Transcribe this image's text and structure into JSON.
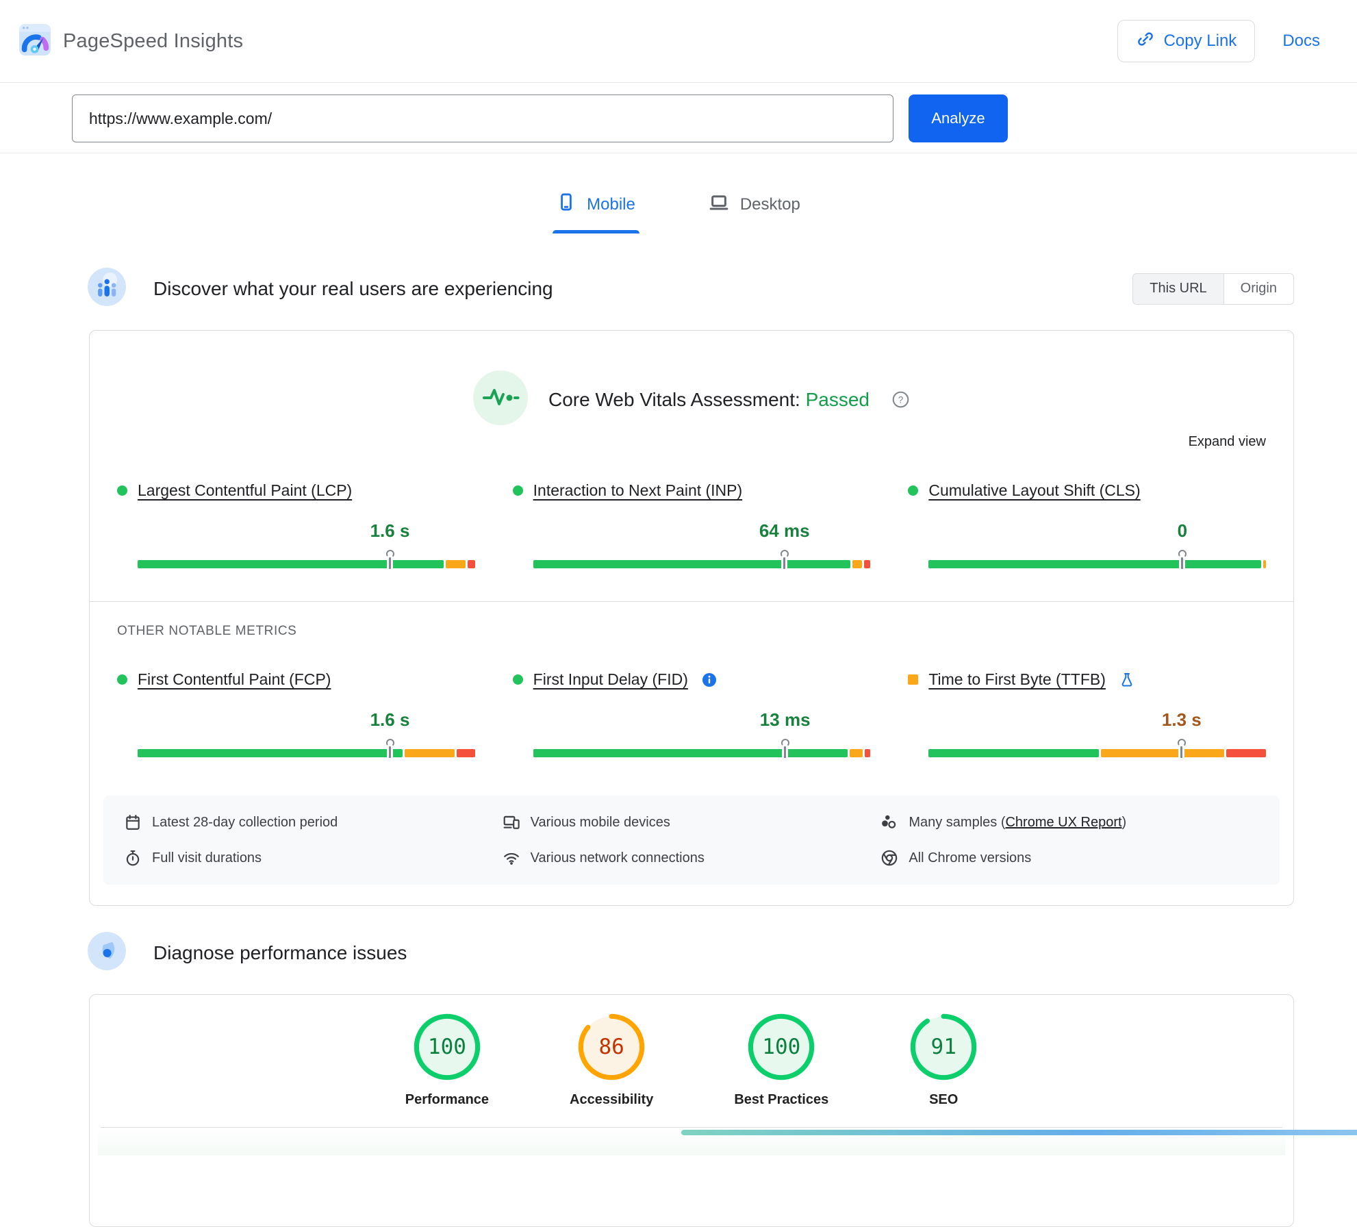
{
  "colors": {
    "accent_blue": "#1a73e8",
    "analyze_blue": "#1164f0",
    "good": "#23c35c",
    "avg_orange": "#faa719",
    "poor_red": "#f4503c",
    "good_text": "#18813d",
    "ni_text": "#a3571c",
    "passed_green": "#129e49",
    "gauge_good": "#0cce6b",
    "gauge_good_bg": "#e7f8ee",
    "gauge_good_text": "#0d8040",
    "gauge_avg": "#ffa400",
    "gauge_avg_bg": "#fdf3e4",
    "gauge_avg_text": "#c33300"
  },
  "header": {
    "app_title": "PageSpeed Insights",
    "copy_link_label": "Copy Link",
    "docs_label": "Docs"
  },
  "url_bar": {
    "url_value": "https://www.example.com/",
    "analyze_label": "Analyze"
  },
  "tabs": {
    "mobile": "Mobile",
    "desktop": "Desktop"
  },
  "field_section": {
    "heading": "Discover what your real users are experiencing",
    "toggle_this_url": "This URL",
    "toggle_origin": "Origin",
    "assessment_label": "Core Web Vitals Assessment:",
    "assessment_result": "Passed",
    "expand_view_label": "Expand view",
    "other_metrics_heading": "OTHER NOTABLE METRICS",
    "core_metrics": [
      {
        "label": "Largest Contentful Paint (LCP)",
        "value": "1.6 s",
        "status": "good",
        "bullet": "circle",
        "marker_pct": 74.8,
        "segments_pct": [
          90.6,
          5.9,
          2.2
        ]
      },
      {
        "label": "Interaction to Next Paint (INP)",
        "value": "64 ms",
        "status": "good",
        "bullet": "circle",
        "marker_pct": 74.5,
        "segments_pct": [
          95.2,
          2.9,
          1.9
        ]
      },
      {
        "label": "Cumulative Layout Shift (CLS)",
        "value": "0",
        "status": "good",
        "bullet": "circle",
        "marker_pct": 75.2,
        "segments_pct": [
          99.2,
          0.8,
          0
        ]
      }
    ],
    "other_metrics": [
      {
        "label": "First Contentful Paint (FCP)",
        "value": "1.6 s",
        "status": "good",
        "bullet": "circle",
        "marker_pct": 74.8,
        "segments_pct": [
          79.5,
          15,
          5.5
        ]
      },
      {
        "label": "First Input Delay (FID)",
        "value": "13 ms",
        "status": "good",
        "bullet": "circle",
        "marker_pct": 74.7,
        "segments_pct": [
          94.3,
          3.9,
          1.8
        ]
      },
      {
        "label": "Time to First Byte (TTFB)",
        "value": "1.3 s",
        "status": "ni",
        "bullet": "square",
        "marker_pct": 75,
        "segments_pct": [
          51,
          37,
          12
        ]
      }
    ],
    "footer": {
      "collection_period": "Latest 28-day collection period",
      "visit_durations": "Full visit durations",
      "devices": "Various mobile devices",
      "connections": "Various network connections",
      "samples_prefix": "Many samples (",
      "samples_link": "Chrome UX Report",
      "samples_suffix": ")",
      "chrome_versions": "All Chrome versions"
    }
  },
  "diagnose_section": {
    "heading": "Diagnose performance issues",
    "scores": [
      {
        "value": "100",
        "label": "Performance",
        "status": "good"
      },
      {
        "value": "86",
        "label": "Accessibility",
        "status": "average"
      },
      {
        "value": "100",
        "label": "Best Practices",
        "status": "good"
      },
      {
        "value": "91",
        "label": "SEO",
        "status": "good"
      }
    ]
  }
}
